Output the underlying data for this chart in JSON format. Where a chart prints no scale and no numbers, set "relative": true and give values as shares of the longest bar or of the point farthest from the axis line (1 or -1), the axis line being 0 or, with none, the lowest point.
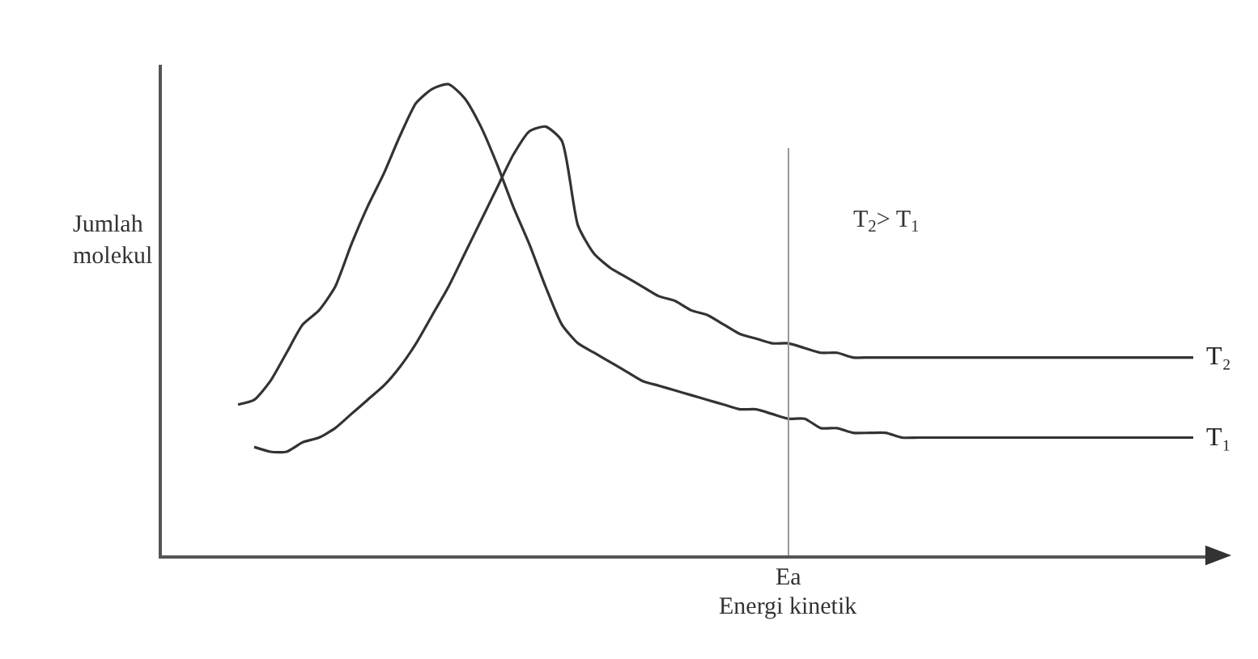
{
  "chart_data": {
    "type": "line",
    "relative": true,
    "xlabel": "Energi kinetik",
    "ylabel": "Jumlah molekul",
    "categories": [
      null,
      null,
      null,
      null,
      null,
      null,
      null,
      null,
      null,
      null,
      null,
      null,
      null,
      null,
      null,
      null,
      null,
      null,
      null,
      null,
      null,
      null,
      null,
      null,
      null,
      null,
      null,
      null,
      null,
      null,
      null,
      null,
      null,
      null,
      null,
      null,
      null,
      null,
      null,
      null,
      null,
      null,
      null,
      null,
      null,
      null,
      null,
      null,
      null,
      null,
      null,
      null,
      null,
      null,
      null,
      null,
      null,
      null,
      null,
      null
    ],
    "series": [
      {
        "name": "T₁",
        "color": "#333333",
        "values": [
          0.32,
          0.33,
          0.37,
          0.43,
          0.49,
          0.52,
          0.57,
          0.66,
          0.74,
          0.81,
          0.89,
          0.96,
          0.99,
          1.0,
          0.97,
          0.91,
          0.83,
          0.74,
          0.66,
          0.57,
          0.49,
          0.45,
          0.43,
          0.41,
          0.39,
          0.37,
          0.36,
          0.35,
          0.34,
          0.33,
          0.32,
          0.31,
          0.31,
          0.3,
          0.29,
          0.29,
          0.27,
          0.27,
          0.26,
          0.26,
          0.26,
          0.25,
          0.25,
          0.25,
          0.25,
          0.25,
          0.25,
          0.25,
          0.25,
          0.25,
          0.25,
          0.25,
          0.25,
          0.25,
          0.25,
          0.25,
          0.25,
          0.25,
          0.25,
          0.25
        ]
      },
      {
        "name": "T₂",
        "color": "#333333",
        "values": [
          null,
          0.23,
          0.22,
          0.22,
          0.24,
          0.25,
          0.27,
          0.3,
          0.33,
          0.36,
          0.4,
          0.45,
          0.51,
          0.57,
          0.64,
          0.71,
          0.78,
          0.85,
          0.9,
          0.91,
          0.88,
          0.7,
          0.64,
          0.61,
          0.59,
          0.57,
          0.55,
          0.54,
          0.52,
          0.51,
          0.49,
          0.47,
          0.46,
          0.45,
          0.45,
          0.44,
          0.43,
          0.43,
          0.42,
          0.42,
          0.42,
          0.42,
          0.42,
          0.42,
          0.42,
          0.42,
          0.42,
          0.42,
          0.42,
          0.42,
          0.42,
          0.42,
          0.42,
          0.42,
          0.42,
          0.42,
          0.42,
          0.42,
          0.42,
          0.42
        ]
      }
    ],
    "annotations": [
      "T$_{2}$> T$_{1}$",
      "Ea"
    ],
    "line_style": "solid",
    "marker": "none",
    "legend": false,
    "tick_labels": false
  }
}
